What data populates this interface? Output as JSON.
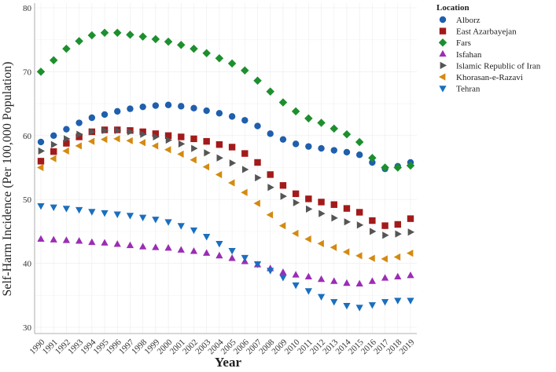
{
  "chart_data": {
    "type": "scatter",
    "title": "",
    "xlabel": "Year",
    "ylabel": "Self-Harm Incidence (Per 100,000 Population)",
    "xlim": [
      1990,
      2019
    ],
    "ylim": [
      30,
      80
    ],
    "yticks": [
      30,
      40,
      50,
      60,
      70,
      80
    ],
    "grid": true,
    "legend": {
      "title": "Location",
      "placement": "top-right-outside"
    },
    "x": [
      1990,
      1991,
      1992,
      1993,
      1994,
      1995,
      1996,
      1997,
      1998,
      1999,
      2000,
      2001,
      2002,
      2003,
      2004,
      2005,
      2006,
      2007,
      2008,
      2009,
      2010,
      2011,
      2012,
      2013,
      2014,
      2015,
      2016,
      2017,
      2018,
      2019
    ],
    "series": [
      {
        "name": "Alborz",
        "marker": "circle",
        "color": "#1f5fad",
        "values": [
          59.0,
          60.0,
          61.0,
          62.0,
          62.8,
          63.3,
          63.8,
          64.2,
          64.5,
          64.7,
          64.8,
          64.6,
          64.3,
          63.9,
          63.5,
          63.0,
          62.4,
          61.5,
          60.3,
          59.4,
          58.7,
          58.3,
          58.0,
          57.7,
          57.4,
          57.0,
          55.8,
          54.8,
          55.2,
          55.8
        ]
      },
      {
        "name": "East Azarbayejan",
        "marker": "square",
        "color": "#a31a1a",
        "values": [
          56.0,
          57.5,
          58.8,
          59.8,
          60.6,
          60.9,
          60.9,
          60.8,
          60.6,
          60.3,
          60.0,
          59.8,
          59.5,
          59.1,
          58.6,
          58.2,
          57.2,
          55.8,
          53.9,
          52.2,
          50.9,
          50.1,
          49.6,
          49.2,
          48.6,
          48.0,
          46.7,
          45.9,
          46.1,
          47.0
        ]
      },
      {
        "name": "Fars",
        "marker": "diamond",
        "color": "#1e8f2e",
        "values": [
          70.0,
          71.8,
          73.6,
          74.8,
          75.7,
          76.1,
          76.1,
          75.8,
          75.5,
          75.1,
          74.7,
          74.2,
          73.6,
          72.9,
          72.1,
          71.3,
          70.2,
          68.6,
          66.9,
          65.2,
          63.8,
          62.7,
          62.0,
          61.1,
          60.2,
          59.0,
          56.5,
          55.0,
          55.0,
          55.3
        ]
      },
      {
        "name": "Isfahan",
        "marker": "triangle-up",
        "color": "#9b2db5",
        "values": [
          43.8,
          43.7,
          43.6,
          43.5,
          43.3,
          43.2,
          43.0,
          42.8,
          42.6,
          42.5,
          42.4,
          42.1,
          41.9,
          41.6,
          41.2,
          40.8,
          40.3,
          39.8,
          39.2,
          38.6,
          38.2,
          37.9,
          37.5,
          37.2,
          36.9,
          36.8,
          37.2,
          37.7,
          37.9,
          38.1
        ]
      },
      {
        "name": "Islamic Republic of Iran",
        "marker": "triangle-right",
        "color": "#555555",
        "values": [
          57.6,
          58.6,
          59.5,
          60.2,
          60.6,
          60.8,
          60.8,
          60.6,
          60.2,
          59.8,
          59.3,
          58.7,
          58.0,
          57.3,
          56.5,
          55.7,
          54.7,
          53.4,
          51.9,
          50.5,
          49.5,
          48.5,
          47.8,
          47.1,
          46.5,
          46.0,
          45.0,
          44.4,
          44.6,
          44.9
        ]
      },
      {
        "name": "Khorasan-e-Razavi",
        "marker": "triangle-left",
        "color": "#d48a10",
        "values": [
          55.0,
          56.4,
          57.6,
          58.4,
          59.1,
          59.4,
          59.5,
          59.2,
          58.9,
          58.4,
          57.8,
          57.1,
          56.2,
          55.1,
          53.9,
          52.6,
          51.1,
          49.4,
          47.6,
          45.9,
          44.7,
          43.8,
          43.1,
          42.5,
          41.8,
          41.2,
          40.8,
          40.7,
          41.0,
          41.6
        ]
      },
      {
        "name": "Tehran",
        "marker": "triangle-down",
        "color": "#1a6fbf",
        "values": [
          49.0,
          48.8,
          48.6,
          48.4,
          48.1,
          47.9,
          47.7,
          47.5,
          47.2,
          46.9,
          46.5,
          45.9,
          45.2,
          44.2,
          43.1,
          42.0,
          40.9,
          39.9,
          38.9,
          37.8,
          36.6,
          35.7,
          34.8,
          34.0,
          33.4,
          33.1,
          33.5,
          34.0,
          34.2,
          34.2
        ]
      }
    ]
  }
}
